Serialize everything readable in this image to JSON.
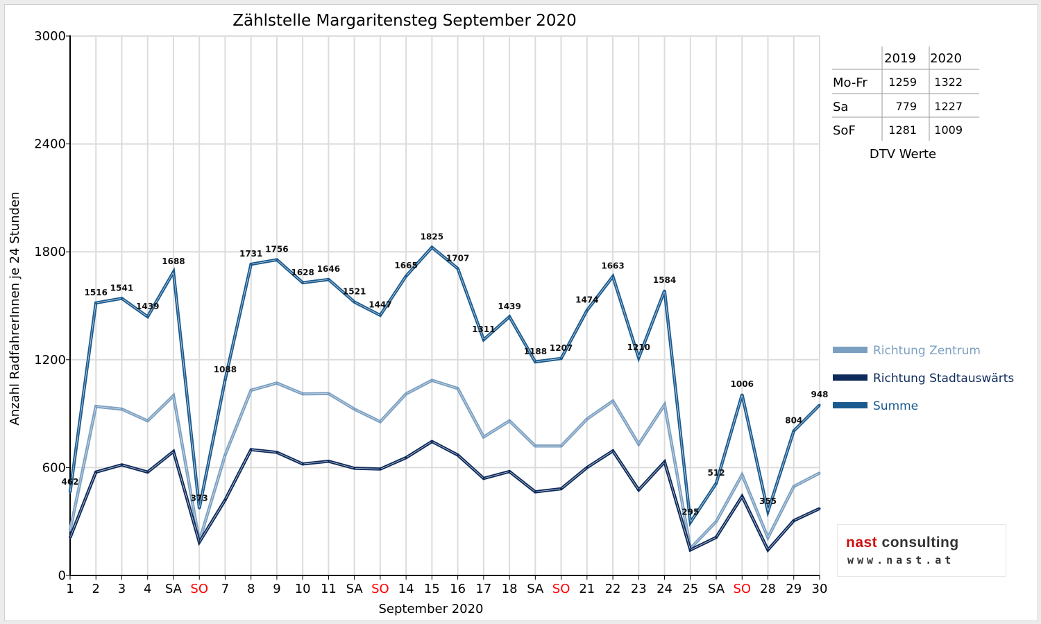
{
  "chart_data": {
    "type": "line",
    "title": "Zählstelle Margaritensteg September 2020",
    "xlabel": "September 2020",
    "ylabel": "Anzahl RadfahrerInnen je 24 Stunden",
    "ylim": [
      0,
      3000
    ],
    "yticks": [
      "0",
      "600",
      "1200",
      "1800",
      "2400",
      "3000"
    ],
    "grid": true,
    "legend_position": "right",
    "categories": [
      "1",
      "2",
      "3",
      "4",
      "SA",
      "SO",
      "7",
      "8",
      "9",
      "10",
      "11",
      "SA",
      "SO",
      "14",
      "15",
      "16",
      "17",
      "18",
      "SA",
      "SO",
      "21",
      "22",
      "23",
      "24",
      "25",
      "SA",
      "SO",
      "28",
      "29",
      "30"
    ],
    "highlight_categories": [
      "SO"
    ],
    "series": [
      {
        "name": "Richtung Zentrum",
        "color": "#7b9fc0",
        "values": [
          250,
          940,
          925,
          860,
          1000,
          190,
          670,
          1030,
          1070,
          1010,
          1012,
          925,
          855,
          1010,
          1085,
          1040,
          770,
          860,
          720,
          720,
          870,
          970,
          730,
          950,
          150,
          300,
          560,
          210,
          495,
          570
        ]
      },
      {
        "name": "Richtung Stadtauswärts",
        "color": "#0e2a5a",
        "values": [
          210,
          575,
          615,
          575,
          690,
          185,
          420,
          700,
          685,
          620,
          635,
          596,
          592,
          655,
          745,
          670,
          540,
          578,
          465,
          482,
          600,
          693,
          476,
          632,
          142,
          212,
          440,
          142,
          305,
          372
        ]
      },
      {
        "name": "Summe",
        "color": "#1a5a8e",
        "values": [
          462,
          1516,
          1541,
          1439,
          1688,
          373,
          1088,
          1731,
          1756,
          1628,
          1646,
          1521,
          1447,
          1665,
          1825,
          1707,
          1311,
          1439,
          1188,
          1207,
          1474,
          1663,
          1210,
          1584,
          295,
          512,
          1006,
          355,
          804,
          948
        ]
      }
    ]
  },
  "dtv_table": {
    "headers": [
      "",
      "2019",
      "2020"
    ],
    "rows": [
      [
        "Mo-Fr",
        "1259",
        "1322"
      ],
      [
        "Sa",
        "779",
        "1227"
      ],
      [
        "SoF",
        "1281",
        "1009"
      ]
    ],
    "caption": "DTV Werte"
  },
  "logo": {
    "brand_main": "nast",
    "brand_second": "consulting",
    "url": "www.nast.at"
  }
}
